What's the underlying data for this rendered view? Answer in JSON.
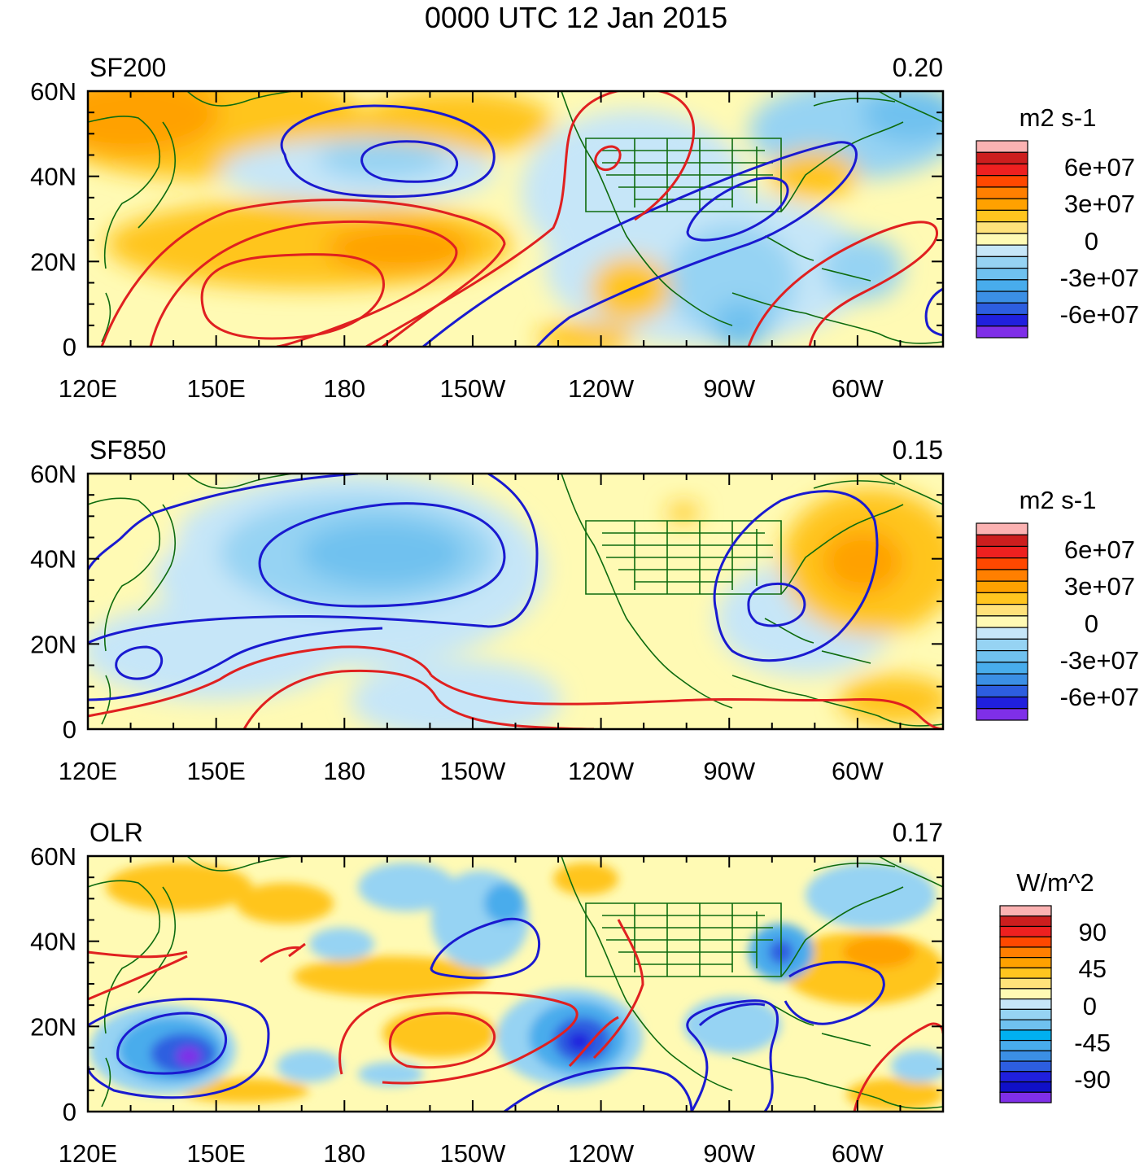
{
  "title": "0000 UTC 12 Jan 2015",
  "chart_data": [
    {
      "type": "heatmap",
      "map": "filled contour map with contour overlay",
      "panel_label": "SF200",
      "corner_value": "0.20",
      "colorbar_unit": "m2 s-1",
      "colorbar_tick_labels": [
        "6e+07",
        "3e+07",
        "0",
        "-3e+07",
        "-6e+07"
      ],
      "x_tick_labels": [
        "120E",
        "150E",
        "180",
        "150W",
        "120W",
        "90W",
        "60W"
      ],
      "y_tick_labels": [
        "60N",
        "40N",
        "20N",
        "0"
      ],
      "lon_range_deg_east": [
        120,
        320
      ],
      "lat_range_deg_north": [
        0,
        60
      ],
      "contour_overlay": [
        {
          "sign": "negative",
          "color": "#1a1ad0",
          "note": "low centered near 170W 45N; band along 130W-70W"
        },
        {
          "sign": "positive",
          "color": "#e02020",
          "note": "high centered near 170E 15N; ridge near 120W"
        }
      ]
    },
    {
      "type": "heatmap",
      "map": "filled contour map with contour overlay",
      "panel_label": "SF850",
      "corner_value": "0.15",
      "colorbar_unit": "m2 s-1",
      "colorbar_tick_labels": [
        "6e+07",
        "3e+07",
        "0",
        "-3e+07",
        "-6e+07"
      ],
      "x_tick_labels": [
        "120E",
        "150E",
        "180",
        "150W",
        "120W",
        "90W",
        "60W"
      ],
      "y_tick_labels": [
        "60N",
        "40N",
        "20N",
        "0"
      ],
      "lon_range_deg_east": [
        120,
        320
      ],
      "lat_range_deg_north": [
        0,
        60
      ],
      "contour_overlay": [
        {
          "sign": "negative",
          "color": "#1a1ad0",
          "note": "low centered near 165W 38N; low near 75W 30N"
        },
        {
          "sign": "positive",
          "color": "#e02020",
          "note": "high bands near 5N-15N"
        }
      ]
    },
    {
      "type": "heatmap",
      "map": "filled contour map with contour overlay",
      "panel_label": "OLR",
      "corner_value": "0.17",
      "colorbar_unit": "W/m^2",
      "colorbar_tick_labels": [
        "90",
        "45",
        "0",
        "-45",
        "-90"
      ],
      "x_tick_labels": [
        "120E",
        "150E",
        "180",
        "150W",
        "120W",
        "90W",
        "60W"
      ],
      "y_tick_labels": [
        "60N",
        "40N",
        "20N",
        "0"
      ],
      "lon_range_deg_east": [
        120,
        320
      ],
      "lat_range_deg_north": [
        0,
        60
      ],
      "contour_overlay": [
        {
          "sign": "negative",
          "color": "#1a1ad0",
          "note": "convective minima near 150E 12N and 125W 15N"
        },
        {
          "sign": "positive",
          "color": "#e02020",
          "note": "enhanced OLR near 170W 18N"
        }
      ]
    }
  ],
  "palette": {
    "sf": [
      "#fbb2b2",
      "#cc1e1e",
      "#ee2020",
      "#ff4800",
      "#ff7f00",
      "#ffa100",
      "#ffc51f",
      "#ffe27a",
      "#fffab4",
      "#c6e6f8",
      "#96d3f3",
      "#6fc1ef",
      "#48acec",
      "#3b8fe5",
      "#2d5ee0",
      "#2020de",
      "#7f2fe8"
    ],
    "olr": [
      "#fbb2b2",
      "#cc1e1e",
      "#ee2020",
      "#ff4800",
      "#ff7f00",
      "#ffa100",
      "#ffc51f",
      "#ffe27a",
      "#fffab4",
      "#c6e6f8",
      "#96d3f3",
      "#6fc1ef",
      "#00b0f0",
      "#48acec",
      "#3b8fe5",
      "#2d5ee0",
      "#2020de",
      "#1010c8",
      "#7f2fe8"
    ],
    "coast": "#0e6b0e",
    "neg_contour": "#1a1ad0",
    "pos_contour": "#e02020"
  }
}
